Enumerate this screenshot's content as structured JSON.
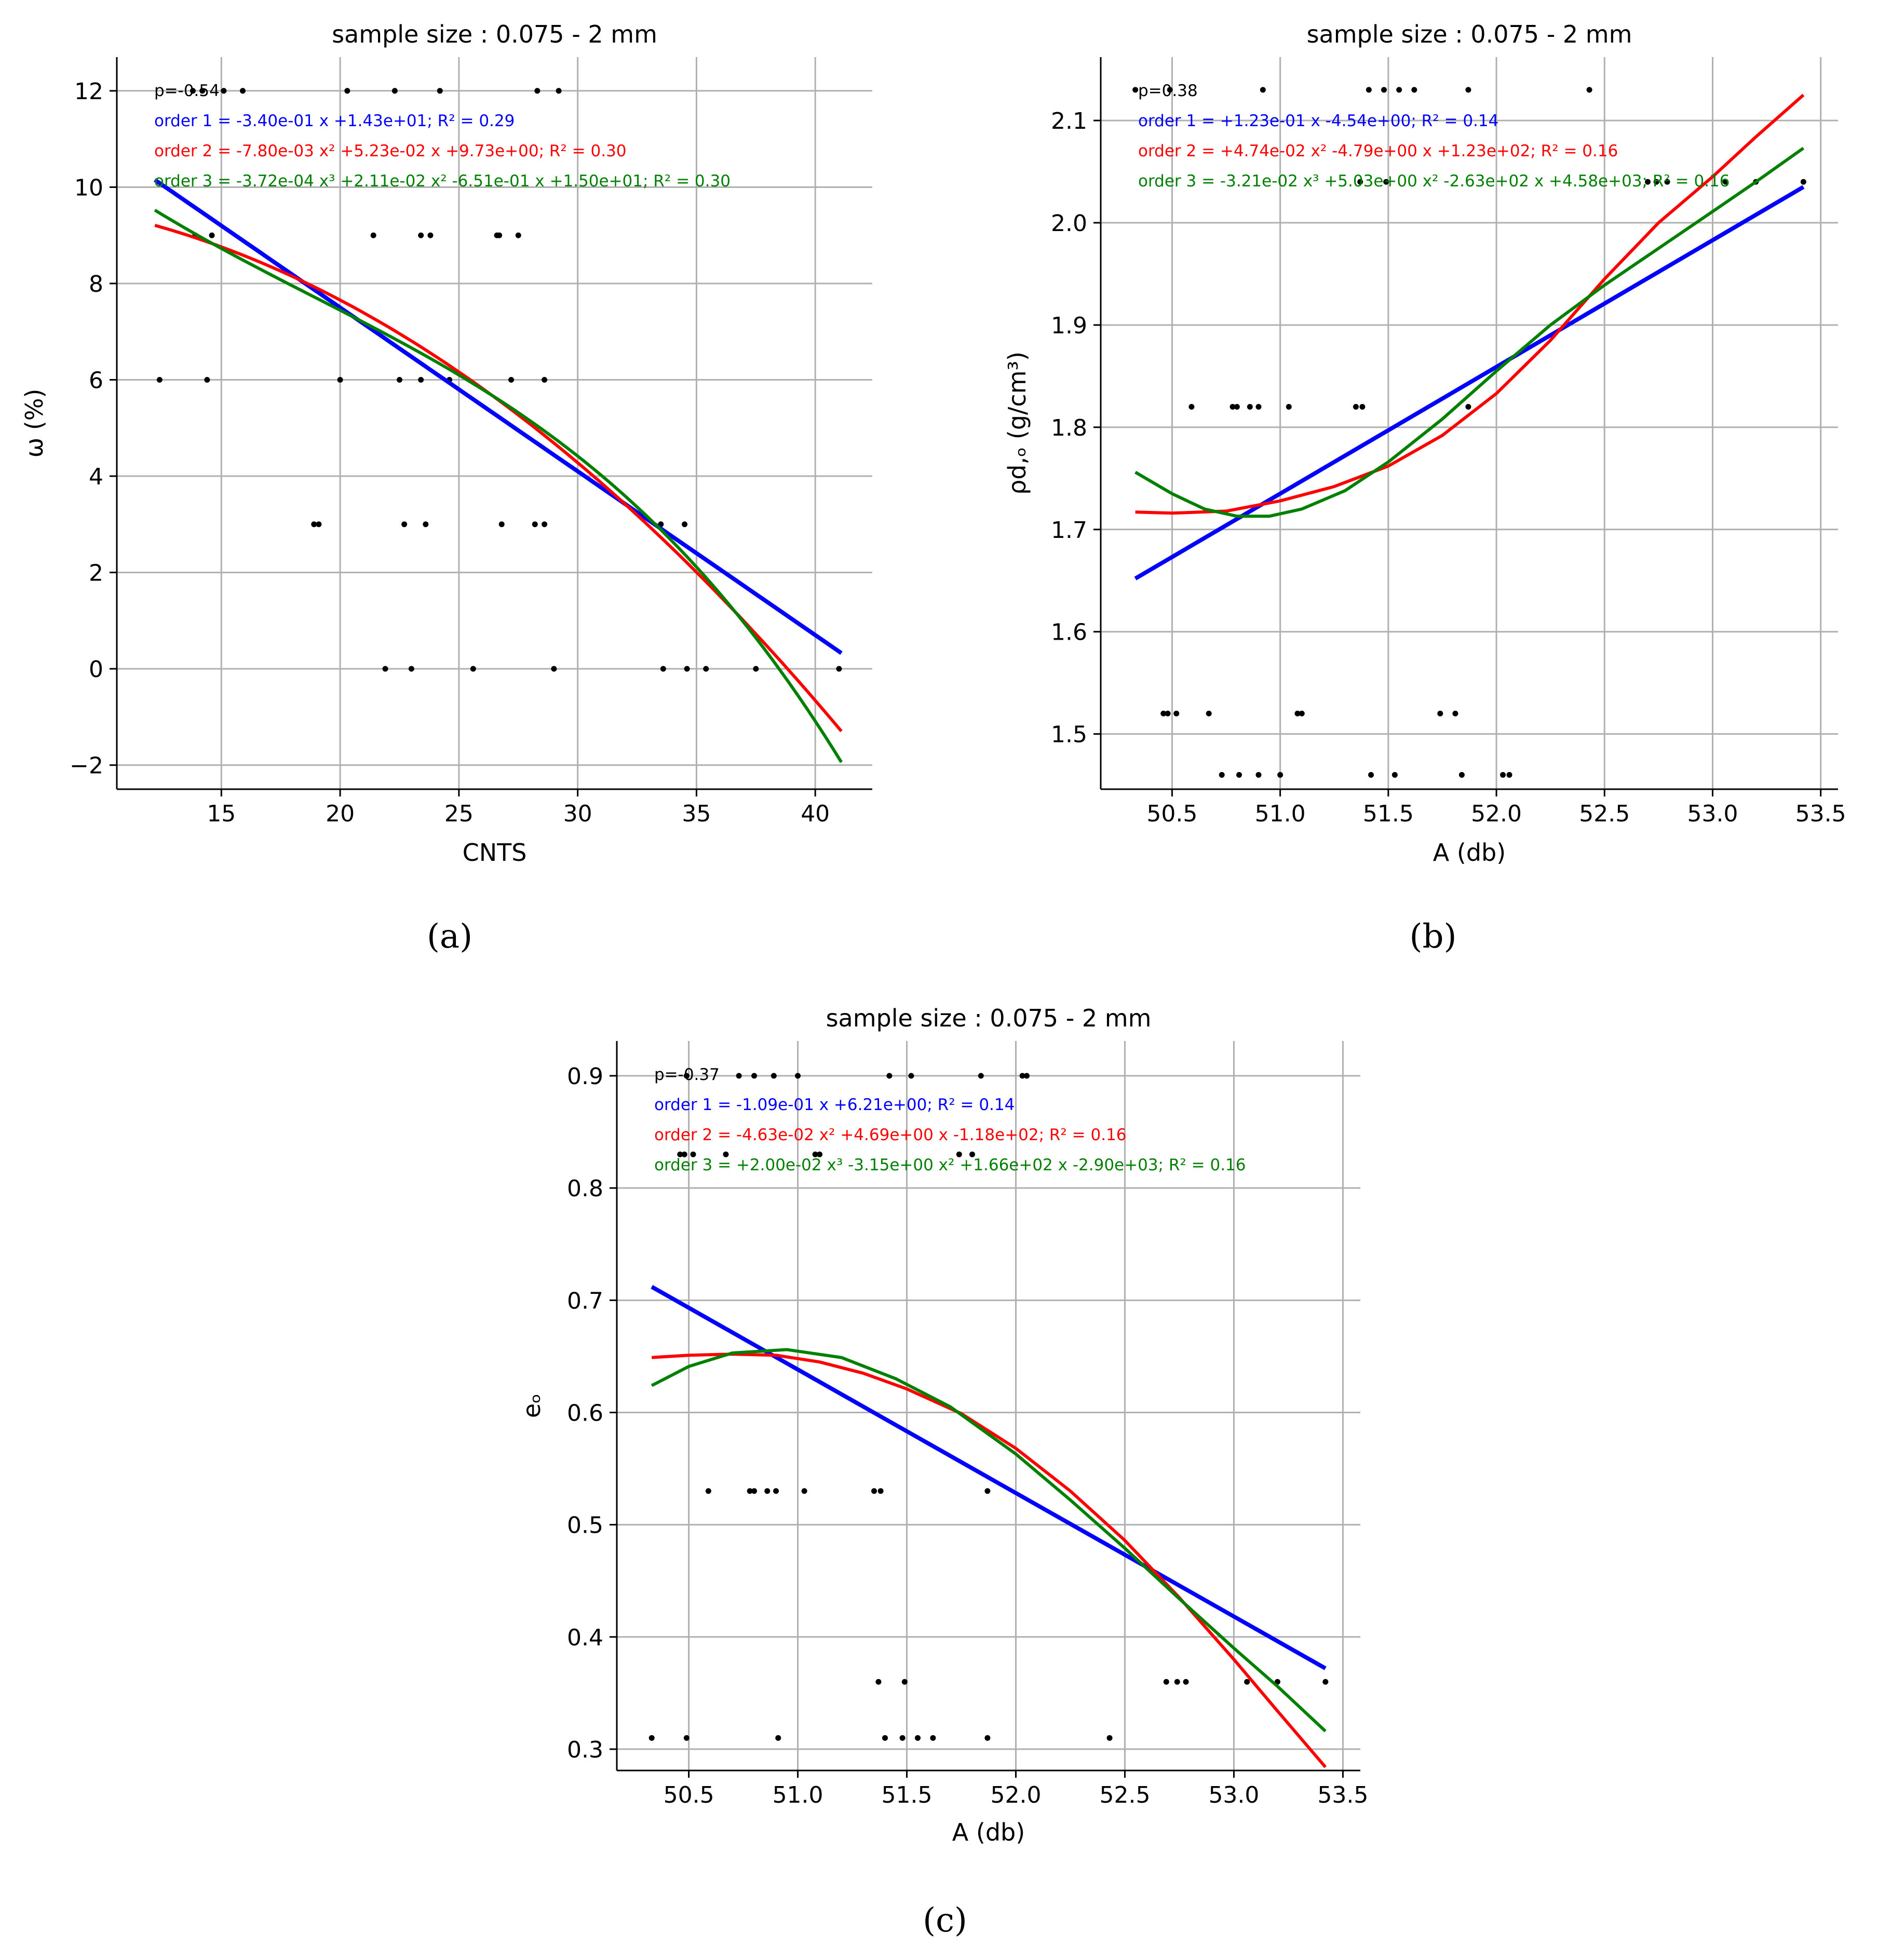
{
  "chart_data": [
    {
      "type": "scatter",
      "panel_label": "(a)",
      "title": "sample size : 0.075 - 2 mm",
      "xlabel": "CNTS",
      "ylabel": "ω (%)",
      "xlim": [
        10.6,
        42.4
      ],
      "ylim": [
        -2.5,
        12.7
      ],
      "xticks": [
        15,
        20,
        25,
        30,
        35,
        40
      ],
      "yticks": [
        -2,
        0,
        2,
        4,
        6,
        8,
        10,
        12
      ],
      "xtick_labels": [
        "15",
        "20",
        "25",
        "30",
        "35",
        "40"
      ],
      "ytick_labels": [
        "−2",
        "0",
        "2",
        "4",
        "6",
        "8",
        "10",
        "12"
      ],
      "annotations": [
        {
          "text": "p=-0.54",
          "color": "#000000"
        },
        {
          "text": "order 1 = -3.40e-01 x +1.43e+01;  R² = 0.29",
          "color": "#0000ff"
        },
        {
          "text": "order 2 = -7.80e-03 x² +5.23e-02 x  +9.73e+00;  R² = 0.30",
          "color": "#ff0000"
        },
        {
          "text": "order 3 = -3.72e-04 x³ +2.11e-02 x² -6.51e-01 x +1.50e+01;  R² = 0.30",
          "color": "#008000"
        }
      ],
      "fits": [
        {
          "name": "order 1",
          "color": "#0000ff",
          "coef": [
            -0.34,
            14.3
          ],
          "x_range": [
            12.2,
            41.1
          ]
        },
        {
          "name": "order 2",
          "color": "#ff0000",
          "coef": [
            -0.0078,
            0.0523,
            9.73
          ],
          "x_range": [
            12.2,
            41.1
          ]
        },
        {
          "name": "order 3",
          "color": "#008000",
          "coef": [
            -0.000372,
            0.0211,
            -0.651,
            15.0
          ],
          "x_range": [
            12.2,
            41.1
          ]
        }
      ],
      "points": [
        {
          "x": 13.8,
          "y": 12
        },
        {
          "x": 14.2,
          "y": 12
        },
        {
          "x": 15.1,
          "y": 12
        },
        {
          "x": 15.9,
          "y": 12
        },
        {
          "x": 20.3,
          "y": 12
        },
        {
          "x": 22.3,
          "y": 12
        },
        {
          "x": 24.2,
          "y": 12
        },
        {
          "x": 28.3,
          "y": 12
        },
        {
          "x": 29.2,
          "y": 12
        },
        {
          "x": 13.9,
          "y": 9
        },
        {
          "x": 14.6,
          "y": 9
        },
        {
          "x": 21.4,
          "y": 9
        },
        {
          "x": 23.4,
          "y": 9
        },
        {
          "x": 23.8,
          "y": 9
        },
        {
          "x": 26.6,
          "y": 9
        },
        {
          "x": 26.7,
          "y": 9
        },
        {
          "x": 27.5,
          "y": 9
        },
        {
          "x": 12.4,
          "y": 6
        },
        {
          "x": 14.4,
          "y": 6
        },
        {
          "x": 20.0,
          "y": 6
        },
        {
          "x": 22.5,
          "y": 6
        },
        {
          "x": 23.4,
          "y": 6
        },
        {
          "x": 24.6,
          "y": 6
        },
        {
          "x": 27.2,
          "y": 6
        },
        {
          "x": 28.6,
          "y": 6
        },
        {
          "x": 18.9,
          "y": 3
        },
        {
          "x": 19.1,
          "y": 3
        },
        {
          "x": 22.7,
          "y": 3
        },
        {
          "x": 23.6,
          "y": 3
        },
        {
          "x": 26.8,
          "y": 3
        },
        {
          "x": 28.2,
          "y": 3
        },
        {
          "x": 28.6,
          "y": 3
        },
        {
          "x": 33.5,
          "y": 3
        },
        {
          "x": 34.5,
          "y": 3
        },
        {
          "x": 21.9,
          "y": 0
        },
        {
          "x": 23.0,
          "y": 0
        },
        {
          "x": 25.6,
          "y": 0
        },
        {
          "x": 29.0,
          "y": 0
        },
        {
          "x": 33.6,
          "y": 0
        },
        {
          "x": 34.6,
          "y": 0
        },
        {
          "x": 35.4,
          "y": 0
        },
        {
          "x": 37.5,
          "y": 0
        },
        {
          "x": 41.0,
          "y": 0
        }
      ]
    },
    {
      "type": "scatter",
      "panel_label": "(b)",
      "title": "sample size : 0.075 - 2 mm",
      "xlabel": "A (db)",
      "ylabel": "ρd,ₒ (g/cm³)",
      "xlim": [
        50.17,
        53.58
      ],
      "ylim": [
        1.446,
        2.162
      ],
      "xticks": [
        50.5,
        51.0,
        51.5,
        52.0,
        52.5,
        53.0,
        53.5
      ],
      "yticks": [
        1.5,
        1.6,
        1.7,
        1.8,
        1.9,
        2.0,
        2.1
      ],
      "xtick_labels": [
        "50.5",
        "51.0",
        "51.5",
        "52.0",
        "52.5",
        "53.0",
        "53.5"
      ],
      "ytick_labels": [
        "1.5",
        "1.6",
        "1.7",
        "1.8",
        "1.9",
        "2.0",
        "2.1"
      ],
      "annotations": [
        {
          "text": "p=0.38",
          "color": "#000000"
        },
        {
          "text": "order 1 = +1.23e-01 x -4.54e+00;  R² = 0.14",
          "color": "#0000ff"
        },
        {
          "text": "order 2 = +4.74e-02 x² -4.79e+00 x  +1.23e+02;  R² = 0.16",
          "color": "#ff0000"
        },
        {
          "text": "order 3 = -3.21e-02 x³ +5.03e+00 x² -2.63e+02 x +4.58e+03;  R² = 0.16",
          "color": "#008000"
        }
      ],
      "fits": [
        {
          "name": "order 1",
          "color": "#0000ff",
          "points": [
            [
              50.33,
              1.652
            ],
            [
              53.42,
              2.035
            ]
          ]
        },
        {
          "name": "order 2",
          "color": "#ff0000",
          "points": [
            [
              50.33,
              1.717
            ],
            [
              50.5,
              1.716
            ],
            [
              50.75,
              1.718
            ],
            [
              51.0,
              1.728
            ],
            [
              51.25,
              1.742
            ],
            [
              51.5,
              1.762
            ],
            [
              51.75,
              1.792
            ],
            [
              52.0,
              1.833
            ],
            [
              52.25,
              1.885
            ],
            [
              52.5,
              1.945
            ],
            [
              52.75,
              2.0
            ],
            [
              53.0,
              2.045
            ],
            [
              53.2,
              2.084
            ],
            [
              53.42,
              2.125
            ]
          ]
        },
        {
          "name": "order 3",
          "color": "#008000",
          "points": [
            [
              50.33,
              1.756
            ],
            [
              50.5,
              1.735
            ],
            [
              50.65,
              1.72
            ],
            [
              50.8,
              1.713
            ],
            [
              50.95,
              1.713
            ],
            [
              51.1,
              1.72
            ],
            [
              51.3,
              1.738
            ],
            [
              51.5,
              1.766
            ],
            [
              51.75,
              1.808
            ],
            [
              52.0,
              1.855
            ],
            [
              52.25,
              1.9
            ],
            [
              52.5,
              1.939
            ],
            [
              52.75,
              1.975
            ],
            [
              53.0,
              2.011
            ],
            [
              53.2,
              2.04
            ],
            [
              53.42,
              2.073
            ]
          ]
        }
      ],
      "points": [
        {
          "x": 50.33,
          "y": 2.13
        },
        {
          "x": 50.49,
          "y": 2.13
        },
        {
          "x": 50.92,
          "y": 2.13
        },
        {
          "x": 51.41,
          "y": 2.13
        },
        {
          "x": 51.48,
          "y": 2.13
        },
        {
          "x": 51.55,
          "y": 2.13
        },
        {
          "x": 51.62,
          "y": 2.13
        },
        {
          "x": 51.87,
          "y": 2.13
        },
        {
          "x": 52.43,
          "y": 2.13
        },
        {
          "x": 51.37,
          "y": 2.04
        },
        {
          "x": 51.49,
          "y": 2.04
        },
        {
          "x": 52.7,
          "y": 2.04
        },
        {
          "x": 52.74,
          "y": 2.04
        },
        {
          "x": 52.79,
          "y": 2.04
        },
        {
          "x": 53.06,
          "y": 2.04
        },
        {
          "x": 53.2,
          "y": 2.04
        },
        {
          "x": 53.42,
          "y": 2.04
        },
        {
          "x": 50.59,
          "y": 1.82
        },
        {
          "x": 50.78,
          "y": 1.82
        },
        {
          "x": 50.8,
          "y": 1.82
        },
        {
          "x": 50.86,
          "y": 1.82
        },
        {
          "x": 50.9,
          "y": 1.82
        },
        {
          "x": 51.04,
          "y": 1.82
        },
        {
          "x": 51.35,
          "y": 1.82
        },
        {
          "x": 51.38,
          "y": 1.82
        },
        {
          "x": 51.87,
          "y": 1.82
        },
        {
          "x": 50.46,
          "y": 1.52
        },
        {
          "x": 50.48,
          "y": 1.52
        },
        {
          "x": 50.52,
          "y": 1.52
        },
        {
          "x": 50.67,
          "y": 1.52
        },
        {
          "x": 51.08,
          "y": 1.52
        },
        {
          "x": 51.1,
          "y": 1.52
        },
        {
          "x": 51.74,
          "y": 1.52
        },
        {
          "x": 51.81,
          "y": 1.52
        },
        {
          "x": 50.73,
          "y": 1.46
        },
        {
          "x": 50.81,
          "y": 1.46
        },
        {
          "x": 50.9,
          "y": 1.46
        },
        {
          "x": 51.0,
          "y": 1.46
        },
        {
          "x": 51.42,
          "y": 1.46
        },
        {
          "x": 51.53,
          "y": 1.46
        },
        {
          "x": 51.84,
          "y": 1.46
        },
        {
          "x": 52.03,
          "y": 1.46
        },
        {
          "x": 52.06,
          "y": 1.46
        }
      ]
    },
    {
      "type": "scatter",
      "panel_label": "(c)",
      "title": "sample size : 0.075 - 2 mm",
      "xlabel": "A (db)",
      "ylabel": "eₒ",
      "xlim": [
        50.17,
        53.58
      ],
      "ylim": [
        0.281,
        0.931
      ],
      "xticks": [
        50.5,
        51.0,
        51.5,
        52.0,
        52.5,
        53.0,
        53.5
      ],
      "yticks": [
        0.3,
        0.4,
        0.5,
        0.6,
        0.7,
        0.8,
        0.9
      ],
      "xtick_labels": [
        "50.5",
        "51.0",
        "51.5",
        "52.0",
        "52.5",
        "53.0",
        "53.5"
      ],
      "ytick_labels": [
        "0.3",
        "0.4",
        "0.5",
        "0.6",
        "0.7",
        "0.8",
        "0.9"
      ],
      "annotations": [
        {
          "text": "p=-0.37",
          "color": "#000000"
        },
        {
          "text": "order 1 = -1.09e-01 x +6.21e+00;  R² = 0.14",
          "color": "#0000ff"
        },
        {
          "text": "order 2 = -4.63e-02 x² +4.69e+00 x  -1.18e+02;  R² = 0.16",
          "color": "#ff0000"
        },
        {
          "text": "order 3 = +2.00e-02 x³ -3.15e+00 x² +1.66e+02 x -2.90e+03;  R² = 0.16",
          "color": "#008000"
        }
      ],
      "fits": [
        {
          "name": "order 1",
          "color": "#0000ff",
          "points": [
            [
              50.33,
              0.712
            ],
            [
              53.42,
              0.372
            ]
          ]
        },
        {
          "name": "order 2",
          "color": "#ff0000",
          "points": [
            [
              50.33,
              0.649
            ],
            [
              50.5,
              0.651
            ],
            [
              50.7,
              0.652
            ],
            [
              50.9,
              0.651
            ],
            [
              51.1,
              0.645
            ],
            [
              51.3,
              0.635
            ],
            [
              51.5,
              0.621
            ],
            [
              51.75,
              0.599
            ],
            [
              52.0,
              0.568
            ],
            [
              52.25,
              0.53
            ],
            [
              52.5,
              0.486
            ],
            [
              52.75,
              0.435
            ],
            [
              53.0,
              0.38
            ],
            [
              53.2,
              0.334
            ],
            [
              53.42,
              0.284
            ]
          ]
        },
        {
          "name": "order 3",
          "color": "#008000",
          "points": [
            [
              50.33,
              0.624
            ],
            [
              50.5,
              0.641
            ],
            [
              50.7,
              0.653
            ],
            [
              50.95,
              0.656
            ],
            [
              51.2,
              0.649
            ],
            [
              51.45,
              0.63
            ],
            [
              51.7,
              0.605
            ],
            [
              52.0,
              0.563
            ],
            [
              52.25,
              0.522
            ],
            [
              52.5,
              0.479
            ],
            [
              52.75,
              0.434
            ],
            [
              53.0,
              0.39
            ],
            [
              53.2,
              0.356
            ],
            [
              53.42,
              0.316
            ]
          ]
        }
      ],
      "points": [
        {
          "x": 50.49,
          "y": 0.9
        },
        {
          "x": 50.73,
          "y": 0.9
        },
        {
          "x": 50.8,
          "y": 0.9
        },
        {
          "x": 50.89,
          "y": 0.9
        },
        {
          "x": 51.0,
          "y": 0.9
        },
        {
          "x": 51.42,
          "y": 0.9
        },
        {
          "x": 51.52,
          "y": 0.9
        },
        {
          "x": 51.84,
          "y": 0.9
        },
        {
          "x": 52.03,
          "y": 0.9
        },
        {
          "x": 52.05,
          "y": 0.9
        },
        {
          "x": 50.46,
          "y": 0.83
        },
        {
          "x": 50.48,
          "y": 0.83
        },
        {
          "x": 50.52,
          "y": 0.83
        },
        {
          "x": 50.67,
          "y": 0.83
        },
        {
          "x": 51.08,
          "y": 0.83
        },
        {
          "x": 51.1,
          "y": 0.83
        },
        {
          "x": 51.74,
          "y": 0.83
        },
        {
          "x": 51.8,
          "y": 0.83
        },
        {
          "x": 50.59,
          "y": 0.53
        },
        {
          "x": 50.78,
          "y": 0.53
        },
        {
          "x": 50.8,
          "y": 0.53
        },
        {
          "x": 50.86,
          "y": 0.53
        },
        {
          "x": 50.9,
          "y": 0.53
        },
        {
          "x": 51.03,
          "y": 0.53
        },
        {
          "x": 51.35,
          "y": 0.53
        },
        {
          "x": 51.38,
          "y": 0.53
        },
        {
          "x": 51.87,
          "y": 0.53
        },
        {
          "x": 51.37,
          "y": 0.36
        },
        {
          "x": 51.49,
          "y": 0.36
        },
        {
          "x": 52.69,
          "y": 0.36
        },
        {
          "x": 52.74,
          "y": 0.36
        },
        {
          "x": 52.78,
          "y": 0.36
        },
        {
          "x": 53.06,
          "y": 0.36
        },
        {
          "x": 53.2,
          "y": 0.36
        },
        {
          "x": 53.42,
          "y": 0.36
        },
        {
          "x": 50.33,
          "y": 0.31
        },
        {
          "x": 50.49,
          "y": 0.31
        },
        {
          "x": 50.91,
          "y": 0.31
        },
        {
          "x": 51.4,
          "y": 0.31
        },
        {
          "x": 51.48,
          "y": 0.31
        },
        {
          "x": 51.55,
          "y": 0.31
        },
        {
          "x": 51.62,
          "y": 0.31
        },
        {
          "x": 51.87,
          "y": 0.31
        },
        {
          "x": 52.43,
          "y": 0.31
        }
      ]
    }
  ]
}
